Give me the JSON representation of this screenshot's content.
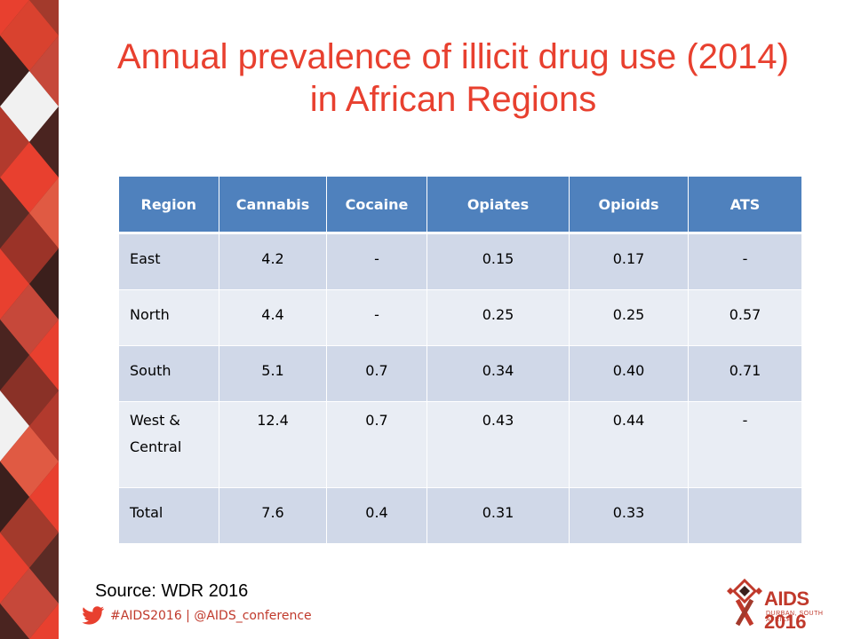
{
  "title": {
    "line1": "Annual prevalence of illicit drug use (2014)",
    "line2": "in African Regions"
  },
  "table": {
    "headers": [
      "Region",
      "Cannabis",
      "Cocaine",
      "Opiates",
      "Opioids",
      "ATS"
    ],
    "rows": [
      [
        "East",
        "4.2",
        "-",
        "0.15",
        "0.17",
        "-"
      ],
      [
        "North",
        "4.4",
        "-",
        "0.25",
        "0.25",
        "0.57"
      ],
      [
        "South",
        "5.1",
        "0.7",
        "0.34",
        "0.40",
        "0.71"
      ],
      [
        "West & Central",
        "12.4",
        "0.7",
        "0.43",
        "0.44",
        "-"
      ],
      [
        "Total",
        "7.6",
        "0.4",
        "0.31",
        "0.33",
        ""
      ]
    ]
  },
  "source": "Source: WDR 2016",
  "footer": {
    "hashtag_text": "#AIDS2016 | @AIDS_conference",
    "icon": "twitter-bird-icon"
  },
  "logo": {
    "main": "AIDS 2016",
    "sub": "DURBAN, SOUTH AFRICA"
  },
  "colors": {
    "title": "#e8402f",
    "header_fill": "#4f81bd",
    "row_odd": "#d0d8e8",
    "row_even": "#e9edf4",
    "accent_red": "#c0392b"
  }
}
